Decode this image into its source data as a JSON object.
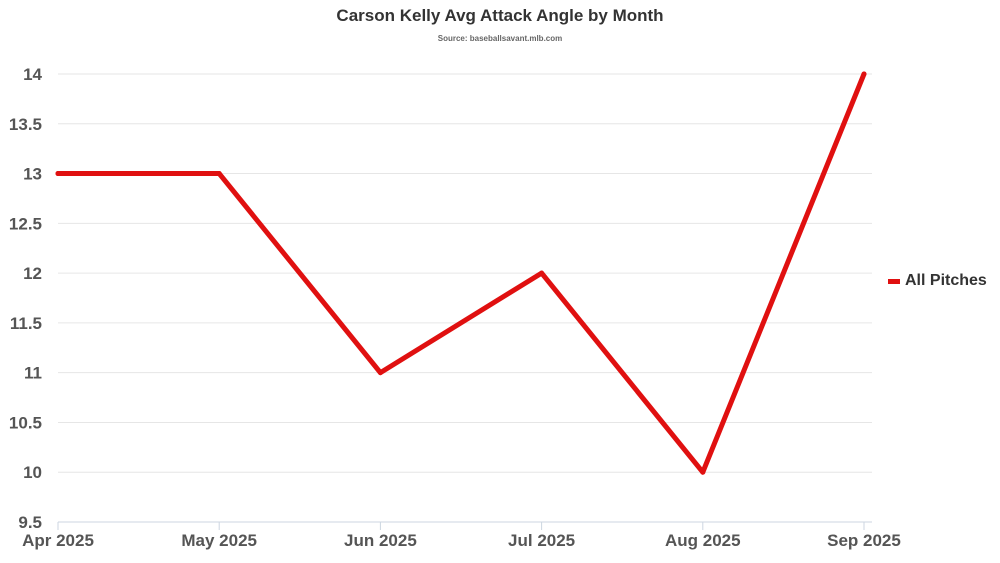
{
  "chart_data": {
    "type": "line",
    "title": "Carson Kelly Avg Attack Angle by Month",
    "subtitle": "Source: baseballsavant.mlb.com",
    "categories": [
      "Apr 2025",
      "May 2025",
      "Jun 2025",
      "Jul 2025",
      "Aug 2025",
      "Sep 2025"
    ],
    "series": [
      {
        "name": "All Pitches",
        "values": [
          13,
          13,
          11,
          12,
          10,
          14
        ],
        "color": "#e01010"
      }
    ],
    "ylim": [
      9.5,
      14
    ],
    "yticks": [
      "9.5",
      "10",
      "10.5",
      "11",
      "11.5",
      "12",
      "12.5",
      "13",
      "13.5",
      "14"
    ],
    "grid": true,
    "legend": "right"
  }
}
